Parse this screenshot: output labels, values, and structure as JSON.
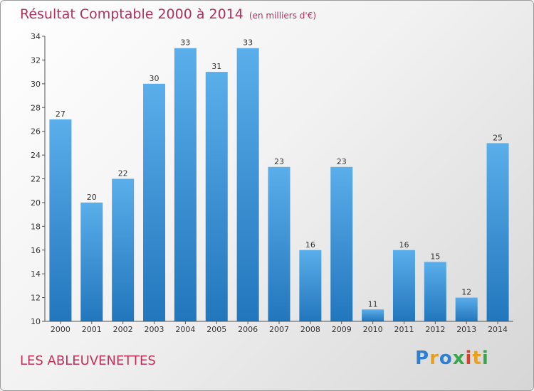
{
  "chart_data": {
    "type": "bar",
    "title": "Résultat Comptable 2000 à 2014",
    "unit_label": "(en milliers d'€)",
    "categories": [
      "2000",
      "2001",
      "2002",
      "2003",
      "2004",
      "2005",
      "2006",
      "2007",
      "2008",
      "2009",
      "2010",
      "2011",
      "2012",
      "2013",
      "2014"
    ],
    "values": [
      27,
      20,
      22,
      30,
      33,
      31,
      33,
      23,
      16,
      23,
      11,
      16,
      15,
      12,
      25
    ],
    "ylim": [
      10,
      34
    ],
    "yticks": [
      10,
      12,
      14,
      16,
      18,
      20,
      22,
      24,
      26,
      28,
      30,
      32,
      34
    ],
    "grid": false,
    "xlabel": "",
    "ylabel": ""
  },
  "commune_name": "LES ABLEUVENETTES",
  "logo": {
    "brand": "Proxiti",
    "letters": [
      "P",
      "r",
      "o",
      "x",
      "i",
      "t",
      "i"
    ]
  },
  "colors": {
    "bar_light": "#5aaeea",
    "bar_dark": "#2276bc",
    "title": "#b0305a",
    "axis_text": "#333333"
  }
}
